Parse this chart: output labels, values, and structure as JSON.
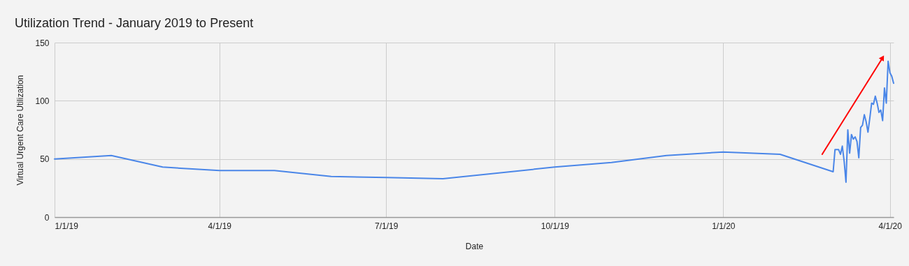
{
  "chart_data": {
    "type": "line",
    "title": "Utilization Trend - January 2019 to Present",
    "xlabel": "Date",
    "ylabel": "Virtual Urgent Care Utilization",
    "x": [
      "2019-01-01",
      "2019-02-01",
      "2019-03-01",
      "2019-04-01",
      "2019-05-01",
      "2019-06-01",
      "2019-07-01",
      "2019-08-01",
      "2019-10-01",
      "2019-11-01",
      "2019-12-01",
      "2020-01-01",
      "2020-02-01",
      "2020-03-01",
      "2020-03-02",
      "2020-03-03",
      "2020-03-04",
      "2020-03-05",
      "2020-03-06",
      "2020-03-07",
      "2020-03-08",
      "2020-03-09",
      "2020-03-10",
      "2020-03-11",
      "2020-03-12",
      "2020-03-13",
      "2020-03-14",
      "2020-03-15",
      "2020-03-16",
      "2020-03-17",
      "2020-03-18",
      "2020-03-19",
      "2020-03-20",
      "2020-03-21",
      "2020-03-22",
      "2020-03-23",
      "2020-03-24",
      "2020-03-25",
      "2020-03-26",
      "2020-03-27",
      "2020-03-28",
      "2020-03-29",
      "2020-03-30",
      "2020-03-31",
      "2020-04-01",
      "2020-04-02",
      "2020-04-03"
    ],
    "series": [
      {
        "color": "#4a86e8",
        "values": [
          50,
          53,
          43,
          40,
          40,
          35,
          34,
          33,
          43,
          47,
          53,
          56,
          54,
          39,
          58,
          58,
          58,
          54,
          61,
          48,
          30,
          75,
          55,
          71,
          67,
          69,
          65,
          51,
          77,
          79,
          88,
          82,
          73,
          85,
          98,
          97,
          104,
          98,
          90,
          92,
          83,
          111,
          98,
          134,
          124,
          121,
          115
        ]
      },
      {
        "type": "line",
        "color": "#ff0000",
        "x": [
          "2020-02-24",
          "2020-03-28"
        ],
        "values": [
          54,
          137
        ]
      }
    ],
    "xlim": [
      "2019-01-01",
      "2020-04-03"
    ],
    "ylim": [
      0,
      150
    ],
    "xticks": [
      {
        "value": "2019-01-01",
        "label": "1/1/19"
      },
      {
        "value": "2019-04-01",
        "label": "4/1/19"
      },
      {
        "value": "2019-07-01",
        "label": "7/1/19"
      },
      {
        "value": "2019-10-01",
        "label": "10/1/19"
      },
      {
        "value": "2020-01-01",
        "label": "1/1/20"
      },
      {
        "value": "2020-04-01",
        "label": "4/1/20"
      }
    ],
    "yticks": [
      0,
      50,
      100,
      150
    ],
    "grid": true
  }
}
